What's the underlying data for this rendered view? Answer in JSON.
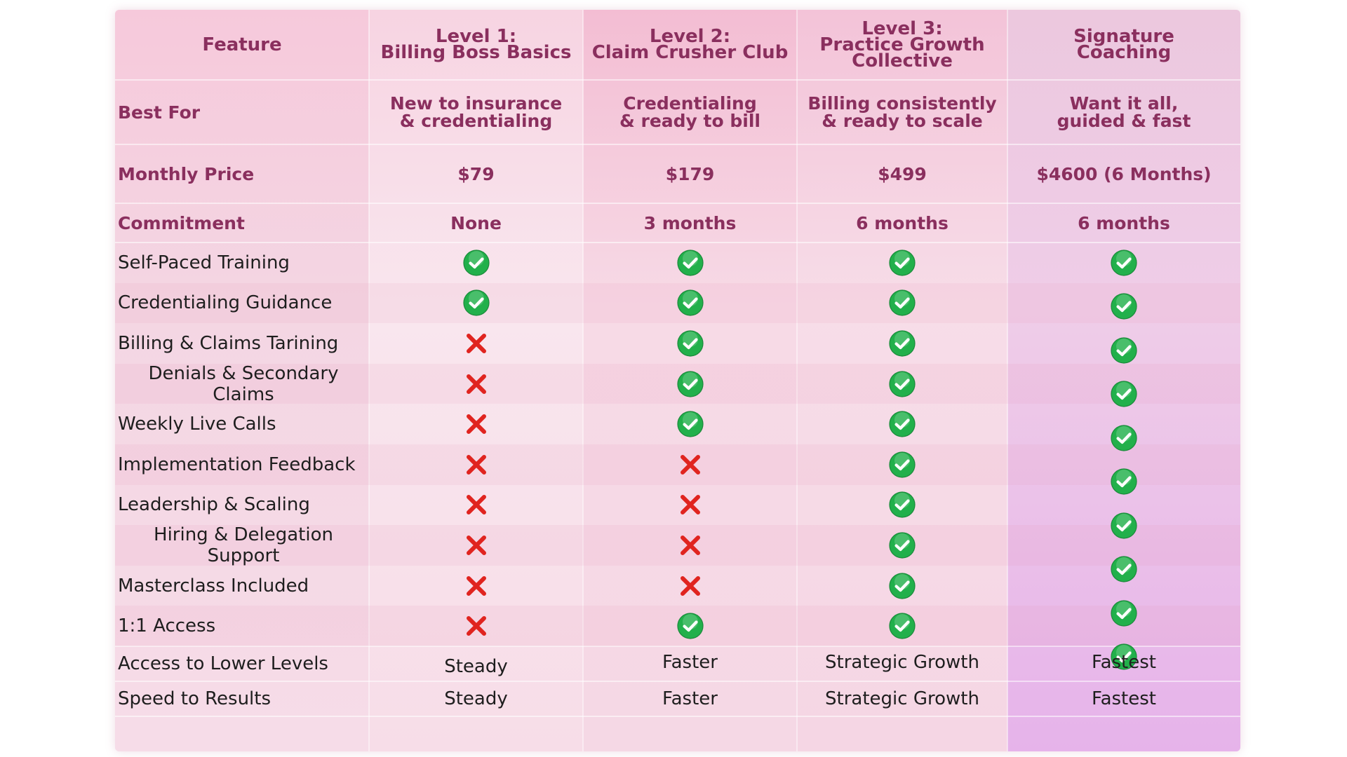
{
  "header": {
    "feature": "Feature",
    "level1": [
      "Level 1:",
      "Billing Boss Basics"
    ],
    "level2": [
      "Level 2:",
      "Claim Crusher Club"
    ],
    "level3": [
      "Level 3:",
      "Practice Growth",
      "Collective"
    ],
    "signature": [
      "Signature",
      "Coaching"
    ]
  },
  "best_for": {
    "label": "Best For",
    "level1": [
      "New to insurance",
      "& credentialing"
    ],
    "level2": [
      "Credentialing",
      "& ready to bill"
    ],
    "level3": [
      "Billing consistently",
      "& ready to scale"
    ],
    "signature": [
      "Want it all,",
      "guided & fast"
    ]
  },
  "price": {
    "label": "Monthly Price",
    "values": [
      "$79",
      "$179",
      "$499",
      "$4600 (6 Months)"
    ]
  },
  "commitment": {
    "label": "Commitment",
    "values": [
      "None",
      "3 months",
      "6 months",
      "6 months"
    ]
  },
  "features": [
    {
      "label": "Self-Paced Training",
      "values": [
        "check",
        "check",
        "check",
        "check"
      ]
    },
    {
      "label": "Credentialing Guidance",
      "values": [
        "check",
        "check",
        "check",
        "check"
      ]
    },
    {
      "label": "Billing & Claims Tarining",
      "values": [
        "cross",
        "check",
        "check",
        "check"
      ]
    },
    {
      "label": "Denials & Secondary Claims",
      "values": [
        "cross",
        "check",
        "check",
        "check"
      ]
    },
    {
      "label": "Weekly Live Calls",
      "values": [
        "cross",
        "check",
        "check",
        "check"
      ]
    },
    {
      "label": "Implementation Feedback",
      "values": [
        "cross",
        "cross",
        "check",
        "check"
      ]
    },
    {
      "label": "Leadership & Scaling",
      "values": [
        "cross",
        "cross",
        "check",
        "check"
      ]
    },
    {
      "label": "Hiring & Delegation Support",
      "values": [
        "cross",
        "cross",
        "check",
        "check"
      ]
    },
    {
      "label": "Masterclass  Included",
      "values": [
        "cross",
        "cross",
        "check",
        "check"
      ]
    },
    {
      "label": "1:1 Access",
      "values": [
        "cross",
        "check",
        "check",
        "check"
      ]
    }
  ],
  "access_lower": {
    "label": "Access to Lower Levels",
    "values": [
      "Steady",
      "Faster",
      "Strategic Growth",
      "Fastest"
    ]
  },
  "speed": {
    "label": "Speed to Results",
    "values": [
      "Steady",
      "Faster",
      "Strategic Growth",
      "Fastest"
    ]
  },
  "icons": {
    "check": "check-circle-icon",
    "cross": "cross-icon"
  },
  "colors": {
    "accent": "#8a2f5e",
    "check": "#22b04b",
    "cross": "#e0241f"
  }
}
